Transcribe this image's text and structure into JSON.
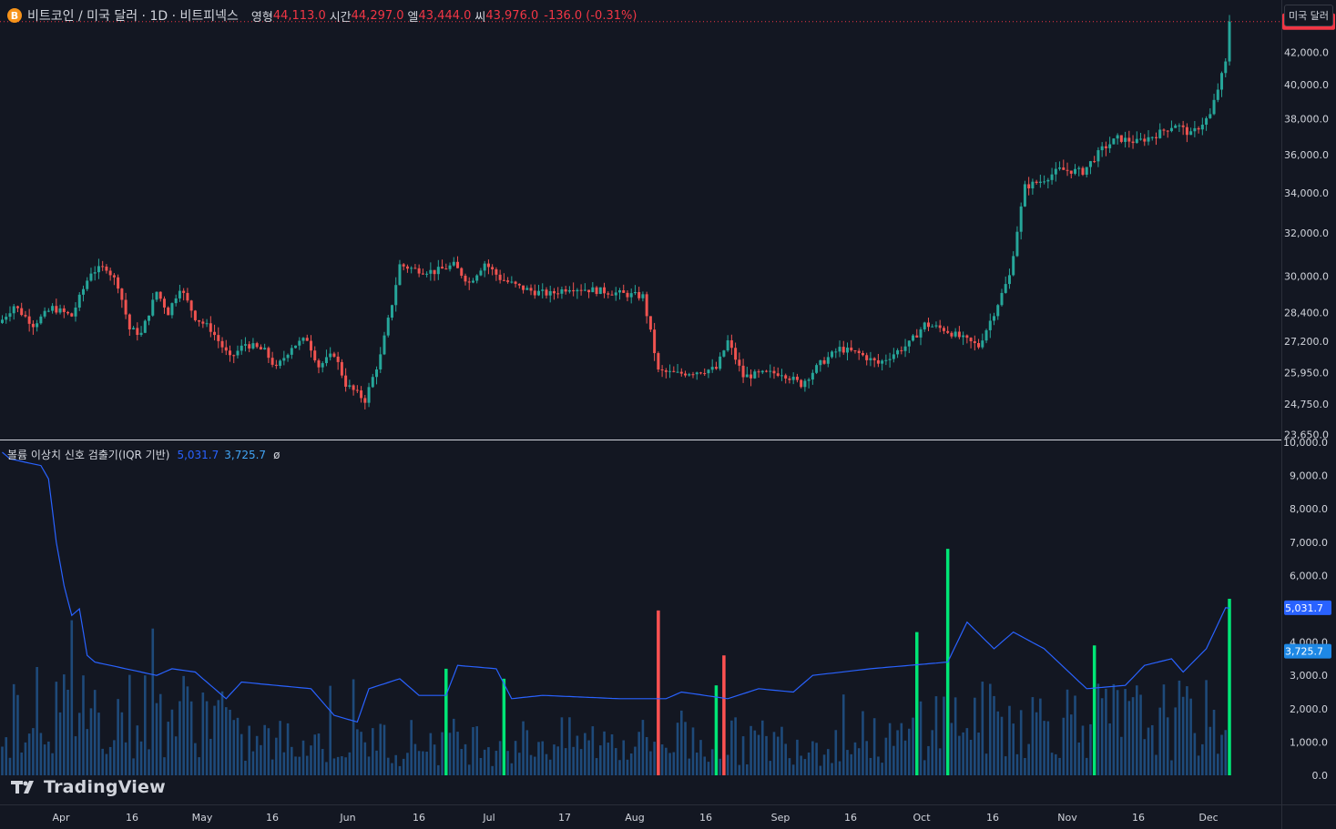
{
  "legend": {
    "coin_icon": "bitcoin-icon",
    "coin_glyph": "B",
    "symbol_title": "비트코인 / 미국 달러 · 1D · 비트피넥스",
    "open_label": "영형",
    "open_value": "44,113.0",
    "high_label": "시간",
    "high_value": "44,297.0",
    "low_label": "엘",
    "low_value": "43,444.0",
    "close_label": "씨",
    "close_value": "43,976.0",
    "change": "-136.0 (-0.31%)"
  },
  "currency_button": "미국 달러",
  "indicator": {
    "name": "볼륨 이상치 신호 검출기(IQR 기반)",
    "value1": "5,031.7",
    "value2": "3,725.7",
    "extra": "ø"
  },
  "branding": {
    "logo_text": "TradingView"
  },
  "colors": {
    "background": "#131722",
    "up": "#26a69a",
    "down": "#ef5350",
    "volume": "#1e4a7a",
    "volume_up_outlier": "#00e676",
    "volume_down_outlier": "#ff5252",
    "line_main": "#2962ff",
    "line_second": "#42a5f5"
  },
  "chart_data": [
    {
      "type": "candlestick",
      "title": "비트코인 / 미국 달러 · 1D · 비트피넥스",
      "price_axis_ticks": [
        "42,000.0",
        "40,000.0",
        "38,000.0",
        "36,000.0",
        "34,000.0",
        "32,000.0",
        "30,000.0",
        "28,400.0",
        "27,200.0",
        "25,950.0",
        "24,750.0",
        "23,650.0"
      ],
      "price_axis_scale": "log",
      "ylim": [
        23500,
        45300
      ],
      "last_price_label": "43,976.0",
      "last_price": 43976,
      "time_axis_ticks": [
        "Apr",
        "16",
        "May",
        "16",
        "Jun",
        "16",
        "Jul",
        "17",
        "Aug",
        "16",
        "Sep",
        "16",
        "Oct",
        "16",
        "Nov",
        "16",
        "Dec"
      ],
      "anchors_day_close": [
        [
          0,
          28100
        ],
        [
          3,
          28700
        ],
        [
          8,
          27900
        ],
        [
          13,
          28600
        ],
        [
          18,
          28250
        ],
        [
          23,
          30200
        ],
        [
          27,
          30400
        ],
        [
          30,
          29600
        ],
        [
          33,
          27700
        ],
        [
          36,
          27500
        ],
        [
          40,
          29300
        ],
        [
          43,
          28400
        ],
        [
          46,
          29500
        ],
        [
          50,
          28200
        ],
        [
          54,
          27700
        ],
        [
          59,
          26500
        ],
        [
          63,
          27100
        ],
        [
          68,
          26800
        ],
        [
          71,
          26100
        ],
        [
          75,
          27000
        ],
        [
          79,
          27300
        ],
        [
          82,
          26200
        ],
        [
          86,
          26700
        ],
        [
          89,
          25500
        ],
        [
          94,
          24900
        ],
        [
          98,
          26600
        ],
        [
          101,
          28800
        ],
        [
          103,
          30500
        ],
        [
          107,
          30300
        ],
        [
          112,
          30200
        ],
        [
          117,
          30500
        ],
        [
          121,
          29700
        ],
        [
          125,
          30600
        ],
        [
          129,
          29900
        ],
        [
          134,
          29500
        ],
        [
          138,
          29300
        ],
        [
          142,
          29200
        ],
        [
          147,
          29500
        ],
        [
          152,
          29400
        ],
        [
          157,
          29300
        ],
        [
          161,
          29200
        ],
        [
          166,
          29100
        ],
        [
          170,
          26000
        ],
        [
          175,
          25900
        ],
        [
          180,
          26000
        ],
        [
          185,
          26100
        ],
        [
          188,
          27200
        ],
        [
          192,
          25800
        ],
        [
          197,
          25900
        ],
        [
          202,
          25950
        ],
        [
          207,
          25500
        ],
        [
          212,
          26300
        ],
        [
          217,
          26900
        ],
        [
          222,
          26700
        ],
        [
          227,
          26300
        ],
        [
          231,
          26700
        ],
        [
          235,
          27100
        ],
        [
          239,
          27900
        ],
        [
          244,
          27700
        ],
        [
          249,
          27300
        ],
        [
          253,
          27000
        ],
        [
          257,
          28400
        ],
        [
          261,
          30000
        ],
        [
          265,
          34300
        ],
        [
          269,
          34600
        ],
        [
          274,
          35200
        ],
        [
          280,
          35100
        ],
        [
          285,
          36300
        ],
        [
          289,
          36900
        ],
        [
          294,
          36700
        ],
        [
          299,
          37100
        ],
        [
          304,
          37700
        ],
        [
          308,
          37100
        ],
        [
          313,
          38200
        ],
        [
          317,
          41300
        ],
        [
          318,
          43976
        ]
      ]
    },
    {
      "type": "bar",
      "title": "볼륨 이상치 신호 검출기(IQR 기반)",
      "axis_ticks": [
        "10,000.0",
        "9,000.0",
        "8,000.0",
        "7,000.0",
        "6,000.0",
        "5,000.0",
        "4,000.0",
        "3,000.0",
        "2,000.0",
        "1,000.0",
        "0.0"
      ],
      "ylim": [
        0,
        10000
      ],
      "value_labels": [
        "5,031.7",
        "3,725.7"
      ],
      "outliers_up": [
        [
          115,
          3200
        ],
        [
          130,
          2900
        ],
        [
          185,
          2700
        ],
        [
          237,
          4300
        ],
        [
          245,
          6800
        ],
        [
          283,
          3900
        ],
        [
          318,
          5300
        ]
      ],
      "outliers_down": [
        [
          170,
          4950
        ],
        [
          187,
          3600
        ]
      ],
      "line_main_anchors": [
        [
          0,
          9700
        ],
        [
          2,
          9500
        ],
        [
          10,
          9300
        ],
        [
          12,
          8900
        ],
        [
          14,
          7000
        ],
        [
          16,
          5700
        ],
        [
          18,
          4800
        ],
        [
          20,
          5000
        ],
        [
          22,
          3600
        ],
        [
          24,
          3400
        ],
        [
          40,
          3000
        ],
        [
          44,
          3200
        ],
        [
          50,
          3100
        ],
        [
          58,
          2300
        ],
        [
          62,
          2800
        ],
        [
          80,
          2600
        ],
        [
          86,
          1800
        ],
        [
          92,
          1600
        ],
        [
          95,
          2600
        ],
        [
          103,
          2900
        ],
        [
          108,
          2400
        ],
        [
          115,
          2400
        ],
        [
          118,
          3300
        ],
        [
          128,
          3200
        ],
        [
          132,
          2300
        ],
        [
          140,
          2400
        ],
        [
          160,
          2300
        ],
        [
          172,
          2300
        ],
        [
          176,
          2500
        ],
        [
          188,
          2300
        ],
        [
          196,
          2600
        ],
        [
          205,
          2500
        ],
        [
          210,
          3000
        ],
        [
          225,
          3200
        ],
        [
          245,
          3400
        ],
        [
          250,
          4600
        ],
        [
          257,
          3800
        ],
        [
          262,
          4300
        ],
        [
          270,
          3800
        ],
        [
          281,
          2600
        ],
        [
          291,
          2700
        ],
        [
          296,
          3300
        ],
        [
          303,
          3500
        ],
        [
          306,
          3100
        ],
        [
          312,
          3800
        ],
        [
          317,
          5031.7
        ]
      ],
      "line_second_anchors": [
        [
          0,
          2000
        ],
        [
          100,
          2500
        ],
        [
          200,
          2800
        ],
        [
          317,
          3725.7
        ]
      ]
    }
  ]
}
